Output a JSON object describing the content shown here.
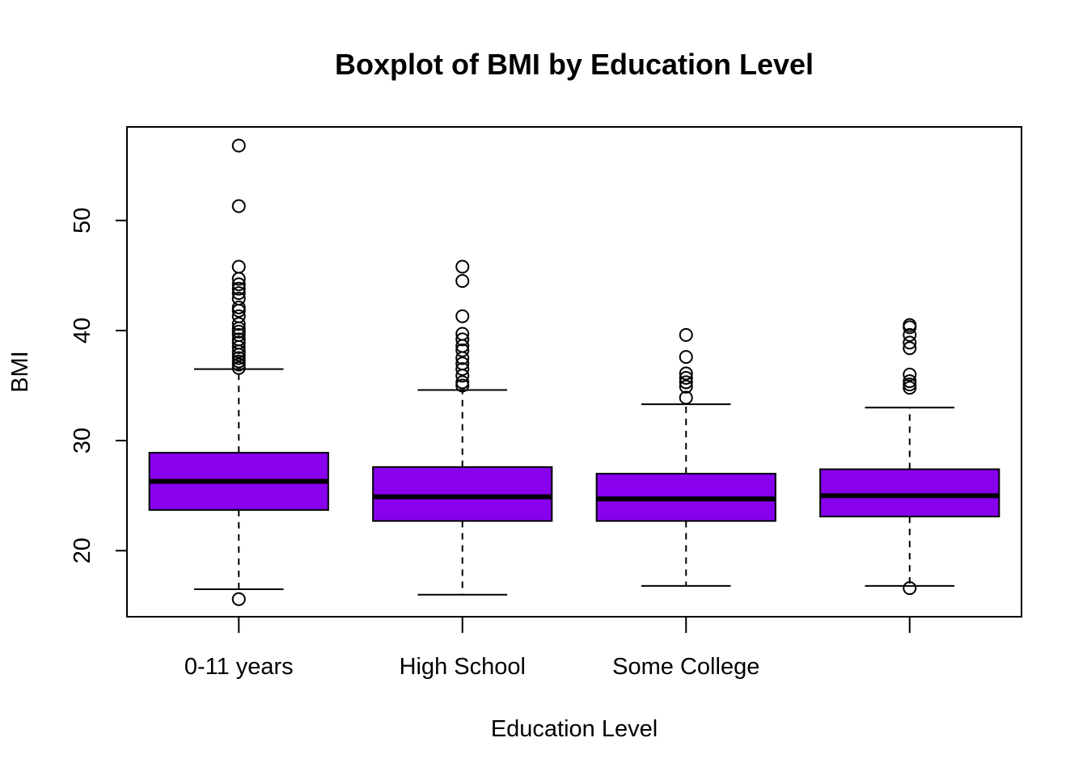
{
  "chart_data": {
    "type": "boxplot",
    "title": "Boxplot of BMI by Education Level",
    "xlabel": "Education Level",
    "ylabel": "BMI",
    "ylim": [
      14.0,
      58.5
    ],
    "yticks": [
      20,
      30,
      40,
      50
    ],
    "categories": [
      "0-11 years",
      "High School",
      "Some College",
      ""
    ],
    "box_color": "#8800EE",
    "grid": false,
    "boxes": [
      {
        "category": "0-11 years",
        "whisker_low": 16.5,
        "q1": 23.7,
        "median": 26.3,
        "q3": 28.9,
        "whisker_high": 36.5,
        "outliers": [
          56.8,
          51.3,
          45.8,
          44.7,
          44.2,
          43.8,
          43.4,
          42.9,
          42.1,
          41.8,
          41.3,
          40.6,
          40.2,
          39.9,
          39.6,
          39.2,
          38.9,
          38.5,
          38.1,
          37.8,
          37.5,
          37.2,
          36.9,
          36.6,
          15.6
        ]
      },
      {
        "category": "High School",
        "whisker_low": 16.0,
        "q1": 22.7,
        "median": 24.9,
        "q3": 27.6,
        "whisker_high": 34.6,
        "outliers": [
          45.8,
          44.5,
          41.3,
          39.7,
          39.2,
          38.6,
          38.2,
          37.5,
          37.0,
          36.5,
          35.9,
          35.3,
          35.0
        ]
      },
      {
        "category": "Some College",
        "whisker_low": 16.8,
        "q1": 22.7,
        "median": 24.7,
        "q3": 27.0,
        "whisker_high": 33.3,
        "outliers": [
          39.6,
          37.6,
          36.1,
          35.7,
          35.3,
          34.9,
          33.9
        ]
      },
      {
        "category": "",
        "whisker_low": 16.8,
        "q1": 23.1,
        "median": 25.0,
        "q3": 27.4,
        "whisker_high": 33.0,
        "outliers": [
          40.5,
          40.3,
          39.6,
          38.9,
          38.4,
          36.0,
          35.4,
          35.1,
          34.8,
          16.6
        ]
      }
    ]
  }
}
